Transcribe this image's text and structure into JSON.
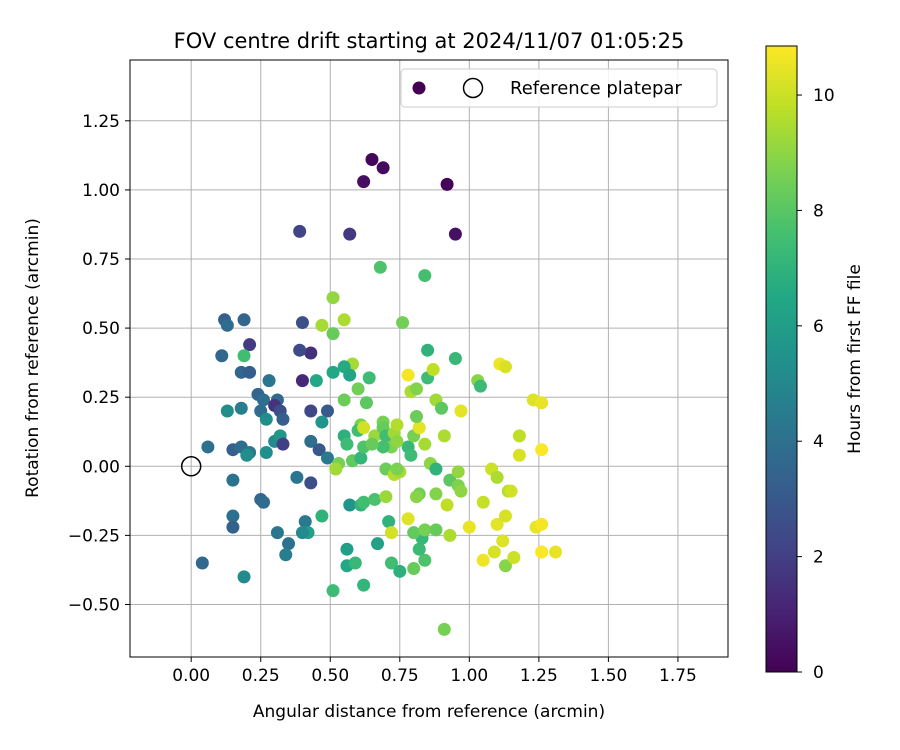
{
  "chart_data": {
    "type": "scatter",
    "title": "FOV centre drift starting at 2024/11/07 01:05:25",
    "xlabel": "Angular distance from reference (arcmin)",
    "ylabel": "Rotation from reference (arcmin)",
    "xlim": [
      -0.22,
      1.93
    ],
    "ylim": [
      -0.69,
      1.47
    ],
    "xticks": [
      "0.00",
      "0.25",
      "0.50",
      "0.75",
      "1.00",
      "1.25",
      "1.50",
      "1.75"
    ],
    "yticks": [
      "−0.50",
      "−0.25",
      "0.00",
      "0.25",
      "0.50",
      "0.75",
      "1.00",
      "1.25"
    ],
    "grid": true,
    "colormap": "viridis",
    "colorbar": {
      "label": "Hours from first FF file",
      "min": 0,
      "max": 10.85,
      "ticks": [
        "0",
        "2",
        "4",
        "6",
        "8",
        "10"
      ]
    },
    "legend": {
      "placement": "top-right",
      "entries": [
        "",
        "Reference platepar"
      ]
    },
    "reference_point": {
      "x": 0.0,
      "y": 0.0
    },
    "points": [
      {
        "x": 0.65,
        "y": 1.11,
        "c": 0.2
      },
      {
        "x": 0.69,
        "y": 1.08,
        "c": 0.3
      },
      {
        "x": 0.62,
        "y": 1.03,
        "c": 0.4
      },
      {
        "x": 0.92,
        "y": 1.02,
        "c": 0.1
      },
      {
        "x": 0.95,
        "y": 0.84,
        "c": 0.5
      },
      {
        "x": 0.57,
        "y": 0.84,
        "c": 1.8
      },
      {
        "x": 0.39,
        "y": 0.85,
        "c": 2.2
      },
      {
        "x": 0.4,
        "y": 0.52,
        "c": 2.6
      },
      {
        "x": 0.43,
        "y": 0.41,
        "c": 1.5
      },
      {
        "x": 0.39,
        "y": 0.42,
        "c": 2.5
      },
      {
        "x": 0.4,
        "y": 0.31,
        "c": 1.2
      },
      {
        "x": 0.21,
        "y": 0.44,
        "c": 1.9
      },
      {
        "x": 0.12,
        "y": 0.53,
        "c": 3.3
      },
      {
        "x": 0.19,
        "y": 0.53,
        "c": 3.5
      },
      {
        "x": 0.13,
        "y": 0.51,
        "c": 3.8
      },
      {
        "x": 0.11,
        "y": 0.4,
        "c": 3.6
      },
      {
        "x": 0.19,
        "y": 0.4,
        "c": 7.5
      },
      {
        "x": 0.18,
        "y": 0.34,
        "c": 3.6
      },
      {
        "x": 0.21,
        "y": 0.34,
        "c": 3.2
      },
      {
        "x": 0.24,
        "y": 0.26,
        "c": 3.5
      },
      {
        "x": 0.28,
        "y": 0.31,
        "c": 4.2
      },
      {
        "x": 0.26,
        "y": 0.24,
        "c": 3.9
      },
      {
        "x": 0.31,
        "y": 0.24,
        "c": 3.7
      },
      {
        "x": 0.3,
        "y": 0.22,
        "c": 1.6
      },
      {
        "x": 0.32,
        "y": 0.2,
        "c": 2.6
      },
      {
        "x": 0.33,
        "y": 0.17,
        "c": 3.3
      },
      {
        "x": 0.25,
        "y": 0.2,
        "c": 3.8
      },
      {
        "x": 0.18,
        "y": 0.21,
        "c": 4.6
      },
      {
        "x": 0.13,
        "y": 0.2,
        "c": 5.3
      },
      {
        "x": 0.27,
        "y": 0.17,
        "c": 5.3
      },
      {
        "x": 0.3,
        "y": 0.09,
        "c": 5.1
      },
      {
        "x": 0.32,
        "y": 0.11,
        "c": 5.7
      },
      {
        "x": 0.33,
        "y": 0.08,
        "c": 2.0
      },
      {
        "x": 0.06,
        "y": 0.07,
        "c": 4.0
      },
      {
        "x": 0.15,
        "y": 0.06,
        "c": 3.3
      },
      {
        "x": 0.18,
        "y": 0.07,
        "c": 3.8
      },
      {
        "x": 0.21,
        "y": 0.05,
        "c": 4.3
      },
      {
        "x": 0.2,
        "y": 0.04,
        "c": 5.3
      },
      {
        "x": 0.27,
        "y": 0.05,
        "c": 5.4
      },
      {
        "x": 0.43,
        "y": 0.2,
        "c": 2.3
      },
      {
        "x": 0.45,
        "y": 0.31,
        "c": 6.5
      },
      {
        "x": 0.49,
        "y": 0.2,
        "c": 3.1
      },
      {
        "x": 0.47,
        "y": 0.16,
        "c": 5.6
      },
      {
        "x": 0.43,
        "y": 0.09,
        "c": 3.9
      },
      {
        "x": 0.46,
        "y": 0.06,
        "c": 3.0
      },
      {
        "x": 0.49,
        "y": 0.03,
        "c": 4.4
      },
      {
        "x": 0.43,
        "y": -0.06,
        "c": 2.6
      },
      {
        "x": 0.38,
        "y": -0.04,
        "c": 4.2
      },
      {
        "x": 0.15,
        "y": -0.05,
        "c": 4.1
      },
      {
        "x": 0.25,
        "y": -0.12,
        "c": 3.5
      },
      {
        "x": 0.26,
        "y": -0.13,
        "c": 3.8
      },
      {
        "x": 0.15,
        "y": -0.18,
        "c": 4.0
      },
      {
        "x": 0.15,
        "y": -0.22,
        "c": 3.4
      },
      {
        "x": 0.31,
        "y": -0.24,
        "c": 4.2
      },
      {
        "x": 0.35,
        "y": -0.28,
        "c": 4.1
      },
      {
        "x": 0.34,
        "y": -0.32,
        "c": 4.6
      },
      {
        "x": 0.04,
        "y": -0.35,
        "c": 3.7
      },
      {
        "x": 0.19,
        "y": -0.4,
        "c": 5.1
      },
      {
        "x": 0.41,
        "y": -0.2,
        "c": 4.4
      },
      {
        "x": 0.42,
        "y": -0.24,
        "c": 6.1
      },
      {
        "x": 0.4,
        "y": -0.24,
        "c": 5.1
      },
      {
        "x": 0.47,
        "y": -0.18,
        "c": 7.0
      },
      {
        "x": 0.51,
        "y": -0.45,
        "c": 7.4
      },
      {
        "x": 0.56,
        "y": -0.3,
        "c": 6.1
      },
      {
        "x": 0.56,
        "y": -0.36,
        "c": 6.5
      },
      {
        "x": 0.59,
        "y": -0.35,
        "c": 7.2
      },
      {
        "x": 0.62,
        "y": -0.43,
        "c": 7.1
      },
      {
        "x": 0.57,
        "y": -0.14,
        "c": 5.6
      },
      {
        "x": 0.61,
        "y": -0.14,
        "c": 7.0
      },
      {
        "x": 0.62,
        "y": -0.13,
        "c": 7.5
      },
      {
        "x": 0.66,
        "y": -0.12,
        "c": 7.7
      },
      {
        "x": 0.67,
        "y": -0.28,
        "c": 6.2
      },
      {
        "x": 0.71,
        "y": -0.2,
        "c": 7.0
      },
      {
        "x": 0.72,
        "y": -0.35,
        "c": 7.5
      },
      {
        "x": 0.75,
        "y": -0.38,
        "c": 6.9
      },
      {
        "x": 0.8,
        "y": -0.37,
        "c": 8.3
      },
      {
        "x": 0.84,
        "y": -0.34,
        "c": 7.8
      },
      {
        "x": 0.82,
        "y": -0.3,
        "c": 7.3
      },
      {
        "x": 0.83,
        "y": -0.26,
        "c": 7.2
      },
      {
        "x": 0.8,
        "y": -0.24,
        "c": 8.2
      },
      {
        "x": 0.84,
        "y": -0.23,
        "c": 8.6
      },
      {
        "x": 0.91,
        "y": -0.59,
        "c": 8.6
      },
      {
        "x": 0.88,
        "y": -0.23,
        "c": 8.3
      },
      {
        "x": 0.93,
        "y": -0.25,
        "c": 9.5
      },
      {
        "x": 0.92,
        "y": -0.14,
        "c": 9.8
      },
      {
        "x": 0.93,
        "y": -0.05,
        "c": 8.1
      },
      {
        "x": 0.96,
        "y": -0.07,
        "c": 8.7
      },
      {
        "x": 0.97,
        "y": -0.09,
        "c": 9.0
      },
      {
        "x": 0.96,
        "y": -0.02,
        "c": 9.1
      },
      {
        "x": 0.88,
        "y": -0.1,
        "c": 8.8
      },
      {
        "x": 0.82,
        "y": -0.1,
        "c": 8.5
      },
      {
        "x": 0.81,
        "y": -0.11,
        "c": 8.9
      },
      {
        "x": 0.78,
        "y": -0.19,
        "c": 10.3
      },
      {
        "x": 0.72,
        "y": -0.24,
        "c": 10.1
      },
      {
        "x": 0.7,
        "y": -0.11,
        "c": 9.2
      },
      {
        "x": 0.7,
        "y": -0.01,
        "c": 8.4
      },
      {
        "x": 0.73,
        "y": -0.03,
        "c": 9.6
      },
      {
        "x": 0.75,
        "y": -0.02,
        "c": 9.4
      },
      {
        "x": 0.74,
        "y": -0.01,
        "c": 8.7
      },
      {
        "x": 0.78,
        "y": 0.07,
        "c": 7.2
      },
      {
        "x": 0.79,
        "y": 0.04,
        "c": 7.4
      },
      {
        "x": 0.8,
        "y": 0.11,
        "c": 8.6
      },
      {
        "x": 0.82,
        "y": 0.14,
        "c": 10.4
      },
      {
        "x": 0.84,
        "y": 0.08,
        "c": 9.4
      },
      {
        "x": 0.81,
        "y": 0.18,
        "c": 8.4
      },
      {
        "x": 0.86,
        "y": 0.01,
        "c": 9.0
      },
      {
        "x": 0.88,
        "y": -0.01,
        "c": 7.0
      },
      {
        "x": 0.91,
        "y": 0.11,
        "c": 9.5
      },
      {
        "x": 0.88,
        "y": 0.24,
        "c": 9.3
      },
      {
        "x": 0.9,
        "y": 0.21,
        "c": 8.1
      },
      {
        "x": 0.95,
        "y": 0.39,
        "c": 7.2
      },
      {
        "x": 0.97,
        "y": 0.2,
        "c": 10.4
      },
      {
        "x": 0.85,
        "y": 0.42,
        "c": 7.0
      },
      {
        "x": 0.85,
        "y": 0.32,
        "c": 7.4
      },
      {
        "x": 0.87,
        "y": 0.35,
        "c": 9.8
      },
      {
        "x": 0.78,
        "y": 0.33,
        "c": 10.7
      },
      {
        "x": 0.79,
        "y": 0.27,
        "c": 9.5
      },
      {
        "x": 0.81,
        "y": 0.28,
        "c": 8.8
      },
      {
        "x": 0.84,
        "y": 0.69,
        "c": 7.6
      },
      {
        "x": 0.68,
        "y": 0.72,
        "c": 7.8
      },
      {
        "x": 0.76,
        "y": 0.52,
        "c": 8.5
      },
      {
        "x": 0.51,
        "y": 0.61,
        "c": 9.1
      },
      {
        "x": 0.47,
        "y": 0.51,
        "c": 9.4
      },
      {
        "x": 0.51,
        "y": 0.48,
        "c": 8.3
      },
      {
        "x": 0.55,
        "y": 0.53,
        "c": 9.5
      },
      {
        "x": 0.58,
        "y": 0.37,
        "c": 9.4
      },
      {
        "x": 0.55,
        "y": 0.36,
        "c": 6.6
      },
      {
        "x": 0.57,
        "y": 0.33,
        "c": 6.3
      },
      {
        "x": 0.6,
        "y": 0.28,
        "c": 8.5
      },
      {
        "x": 0.64,
        "y": 0.32,
        "c": 7.4
      },
      {
        "x": 0.51,
        "y": 0.34,
        "c": 6.5
      },
      {
        "x": 0.55,
        "y": 0.24,
        "c": 8.4
      },
      {
        "x": 0.63,
        "y": 0.23,
        "c": 8.1
      },
      {
        "x": 0.61,
        "y": 0.15,
        "c": 8.7
      },
      {
        "x": 0.6,
        "y": 0.13,
        "c": 7.5
      },
      {
        "x": 0.62,
        "y": 0.14,
        "c": 10.1
      },
      {
        "x": 0.66,
        "y": 0.11,
        "c": 9.2
      },
      {
        "x": 0.69,
        "y": 0.16,
        "c": 8.6
      },
      {
        "x": 0.69,
        "y": 0.14,
        "c": 8.3
      },
      {
        "x": 0.7,
        "y": 0.11,
        "c": 7.5
      },
      {
        "x": 0.73,
        "y": 0.12,
        "c": 9.3
      },
      {
        "x": 0.74,
        "y": 0.15,
        "c": 9.6
      },
      {
        "x": 0.72,
        "y": 0.07,
        "c": 8.7
      },
      {
        "x": 0.74,
        "y": 0.09,
        "c": 9.0
      },
      {
        "x": 0.69,
        "y": 0.07,
        "c": 7.6
      },
      {
        "x": 0.55,
        "y": 0.11,
        "c": 6.9
      },
      {
        "x": 0.56,
        "y": 0.08,
        "c": 7.4
      },
      {
        "x": 0.53,
        "y": 0.01,
        "c": 8.6
      },
      {
        "x": 0.52,
        "y": -0.01,
        "c": 9.3
      },
      {
        "x": 0.58,
        "y": 0.02,
        "c": 8.2
      },
      {
        "x": 0.61,
        "y": 0.03,
        "c": 7.1
      },
      {
        "x": 0.62,
        "y": 0.07,
        "c": 7.8
      },
      {
        "x": 0.65,
        "y": 0.08,
        "c": 8.3
      },
      {
        "x": 1.03,
        "y": 0.31,
        "c": 8.9
      },
      {
        "x": 1.04,
        "y": 0.29,
        "c": 7.3
      },
      {
        "x": 1.11,
        "y": 0.37,
        "c": 10.6
      },
      {
        "x": 1.13,
        "y": 0.36,
        "c": 10.2
      },
      {
        "x": 1.23,
        "y": 0.24,
        "c": 10.3
      },
      {
        "x": 1.26,
        "y": 0.23,
        "c": 10.5
      },
      {
        "x": 1.18,
        "y": 0.11,
        "c": 9.8
      },
      {
        "x": 1.18,
        "y": 0.04,
        "c": 10.2
      },
      {
        "x": 1.26,
        "y": 0.06,
        "c": 10.8
      },
      {
        "x": 1.08,
        "y": -0.01,
        "c": 10.0
      },
      {
        "x": 1.1,
        "y": -0.04,
        "c": 9.5
      },
      {
        "x": 1.14,
        "y": -0.09,
        "c": 9.6
      },
      {
        "x": 1.15,
        "y": -0.09,
        "c": 10.1
      },
      {
        "x": 1.05,
        "y": -0.13,
        "c": 9.9
      },
      {
        "x": 1.1,
        "y": -0.21,
        "c": 10.4
      },
      {
        "x": 1.13,
        "y": -0.18,
        "c": 10.2
      },
      {
        "x": 1.0,
        "y": -0.22,
        "c": 10.5
      },
      {
        "x": 1.12,
        "y": -0.27,
        "c": 10.3
      },
      {
        "x": 1.09,
        "y": -0.31,
        "c": 10.2
      },
      {
        "x": 1.05,
        "y": -0.34,
        "c": 10.6
      },
      {
        "x": 1.13,
        "y": -0.36,
        "c": 8.9
      },
      {
        "x": 1.16,
        "y": -0.33,
        "c": 10.0
      },
      {
        "x": 1.24,
        "y": -0.22,
        "c": 10.5
      },
      {
        "x": 1.26,
        "y": -0.21,
        "c": 10.7
      },
      {
        "x": 1.26,
        "y": -0.31,
        "c": 10.8
      },
      {
        "x": 1.31,
        "y": -0.31,
        "c": 10.5
      }
    ]
  }
}
